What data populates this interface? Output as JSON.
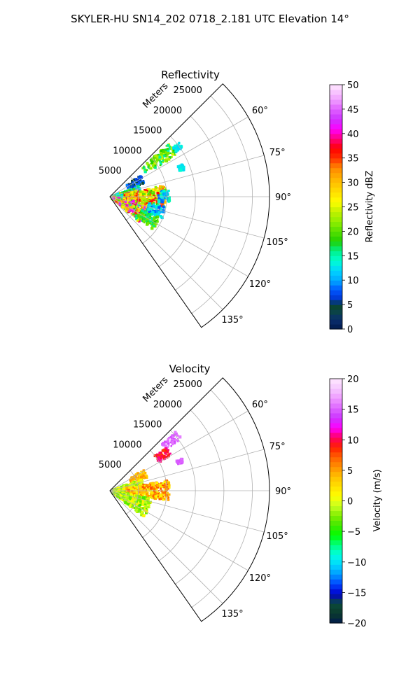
{
  "suptitle": "SKYLER-HU  SN14_202  0718_2.181 UTC Elevation 14°",
  "chart_data": [
    {
      "type": "polar-ppi",
      "title": "Reflectivity",
      "range_label": "Meters",
      "range_ticks": [
        5000,
        10000,
        15000,
        20000,
        25000
      ],
      "range_max": 28000,
      "azimuth_limits_deg": [
        45,
        145
      ],
      "azimuth_ticks_deg": [
        60,
        75,
        90,
        105,
        120,
        135
      ],
      "azimuth_tick_labels": [
        "60°",
        "75°",
        "90°",
        "105°",
        "120°",
        "135°"
      ],
      "colorbar": {
        "label": "Reflectivity dBZ",
        "min": 0,
        "max": 50,
        "ticks": [
          0,
          5,
          10,
          15,
          20,
          25,
          30,
          35,
          40,
          45,
          50
        ],
        "colormap": "pyart_NWSRef_like"
      },
      "echo_regions": [
        {
          "az_min": 48,
          "az_max": 58,
          "r_min": 7500,
          "r_max": 14000,
          "v_min": 15,
          "v_max": 25
        },
        {
          "az_min": 52,
          "az_max": 56,
          "r_min": 14000,
          "r_max": 15500,
          "v_min": 12,
          "v_max": 14
        },
        {
          "az_min": 66,
          "az_max": 70,
          "r_min": 13000,
          "r_max": 14000,
          "v_min": 12,
          "v_max": 14
        },
        {
          "az_min": 55,
          "az_max": 68,
          "r_min": 3500,
          "r_max": 6500,
          "v_min": 4,
          "v_max": 10
        },
        {
          "az_min": 70,
          "az_max": 92,
          "r_min": 500,
          "r_max": 5500,
          "v_min": 10,
          "v_max": 22
        },
        {
          "az_min": 78,
          "az_max": 100,
          "r_min": 2500,
          "r_max": 10000,
          "v_min": 18,
          "v_max": 38
        },
        {
          "az_min": 100,
          "az_max": 130,
          "r_min": 500,
          "r_max": 7000,
          "v_min": 15,
          "v_max": 45
        },
        {
          "az_min": 84,
          "az_max": 96,
          "r_min": 8500,
          "r_max": 10500,
          "v_min": 8,
          "v_max": 16
        },
        {
          "az_min": 100,
          "az_max": 112,
          "r_min": 7000,
          "r_max": 10000,
          "v_min": 8,
          "v_max": 15
        },
        {
          "az_min": 113,
          "az_max": 127,
          "r_min": 6000,
          "r_max": 9500,
          "v_min": 15,
          "v_max": 22
        }
      ]
    },
    {
      "type": "polar-ppi",
      "title": "Velocity",
      "range_label": "Meters",
      "range_ticks": [
        5000,
        10000,
        15000,
        20000,
        25000
      ],
      "range_max": 28000,
      "azimuth_limits_deg": [
        45,
        145
      ],
      "azimuth_ticks_deg": [
        60,
        75,
        90,
        105,
        120,
        135
      ],
      "azimuth_tick_labels": [
        "60°",
        "75°",
        "90°",
        "105°",
        "120°",
        "135°"
      ],
      "colorbar": {
        "label": "Velocity (m/s)",
        "min": -20,
        "max": 20,
        "ticks": [
          -20,
          -15,
          -10,
          -5,
          0,
          5,
          10,
          15,
          20
        ],
        "colormap": "pyart_NWSVel_like"
      },
      "echo_regions": [
        {
          "az_min": 48,
          "az_max": 54,
          "r_min": 12000,
          "r_max": 15500,
          "v_min": 14,
          "v_max": 16
        },
        {
          "az_min": 52,
          "az_max": 60,
          "r_min": 9500,
          "r_max": 12500,
          "v_min": 8,
          "v_max": 11
        },
        {
          "az_min": 66,
          "az_max": 69,
          "r_min": 12800,
          "r_max": 13800,
          "v_min": 14,
          "v_max": 16
        },
        {
          "az_min": 58,
          "az_max": 70,
          "r_min": 4000,
          "r_max": 7000,
          "v_min": 2,
          "v_max": 6
        },
        {
          "az_min": 70,
          "az_max": 95,
          "r_min": 500,
          "r_max": 6000,
          "v_min": -3,
          "v_max": 2
        },
        {
          "az_min": 80,
          "az_max": 100,
          "r_min": 3000,
          "r_max": 10500,
          "v_min": 0,
          "v_max": 8
        },
        {
          "az_min": 100,
          "az_max": 128,
          "r_min": 500,
          "r_max": 7500,
          "v_min": -4,
          "v_max": 2
        }
      ]
    }
  ]
}
